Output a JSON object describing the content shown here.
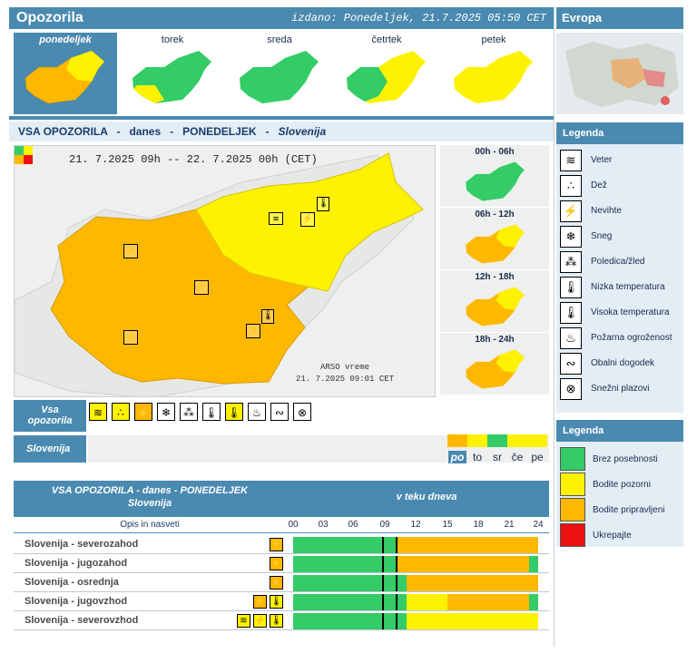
{
  "header": {
    "title": "Opozorila",
    "issued": "izdano: Ponedeljek, 21.7.2025 05:50 CET"
  },
  "europe": {
    "title": "Evropa"
  },
  "days": [
    {
      "label": "ponedeljek",
      "active": true
    },
    {
      "label": "torek",
      "active": false
    },
    {
      "label": "sreda",
      "active": false
    },
    {
      "label": "četrtek",
      "active": false
    },
    {
      "label": "petek",
      "active": false
    }
  ],
  "main": {
    "title_prefix": "VSA OPOZORILA   -   danes   -   PONEDELJEK   -   ",
    "title_region": "Slovenija",
    "period": "21. 7.2025  09h  --  22. 7.2025  00h    (CET)",
    "credit_line1": "ARSO vreme",
    "credit_line2": "21. 7.2025  09:01 CET"
  },
  "hours": [
    "00h - 06h",
    "06h - 12h",
    "12h - 18h",
    "18h - 24h"
  ],
  "icon_row": {
    "label_line1": "Vsa",
    "label_line2": "opozorila"
  },
  "region_row": {
    "label": "Slovenija",
    "day_labels": [
      "po",
      "to",
      "sr",
      "če",
      "pe"
    ]
  },
  "table": {
    "head_line1": "VSA OPOZORILA - danes - PONEDELJEK",
    "head_line2": "Slovenija",
    "head_right": "v teku dneva",
    "opis": "Opis in nasveti",
    "hour_marks": [
      "00",
      "03",
      "06",
      "09",
      "12",
      "15",
      "18",
      "21",
      "24"
    ],
    "rows": [
      {
        "name": "Slovenija - severozahod"
      },
      {
        "name": "Slovenija - jugozahod"
      },
      {
        "name": "Slovenija - osrednja"
      },
      {
        "name": "Slovenija - jugovzhod"
      },
      {
        "name": "Slovenija - severovzhod"
      }
    ]
  },
  "legend_types": {
    "title": "Legenda",
    "items": [
      {
        "label": "Veter",
        "icon": "wind-icon"
      },
      {
        "label": "Dež",
        "icon": "rain-icon"
      },
      {
        "label": "Nevihte",
        "icon": "thunderstorm-icon"
      },
      {
        "label": "Sneg",
        "icon": "snow-icon"
      },
      {
        "label": "Poledica/žled",
        "icon": "ice-icon"
      },
      {
        "label": "Nizka temperatura",
        "icon": "low-temperature-icon"
      },
      {
        "label": "Visoka temperatura",
        "icon": "high-temperature-icon"
      },
      {
        "label": "Požarna ogroženost",
        "icon": "fire-icon"
      },
      {
        "label": "Obalni dogodek",
        "icon": "coastal-icon"
      },
      {
        "label": "Snežni plazovi",
        "icon": "avalanche-icon"
      }
    ]
  },
  "legend_colors": {
    "title": "Legenda",
    "items": [
      {
        "label": "Brez posebnosti",
        "color": "#33cc66"
      },
      {
        "label": "Bodite pozorni",
        "color": "#fff200"
      },
      {
        "label": "Bodite pripravljeni",
        "color": "#ffb800"
      },
      {
        "label": "Ukrepajte",
        "color": "#ee1111"
      }
    ]
  }
}
